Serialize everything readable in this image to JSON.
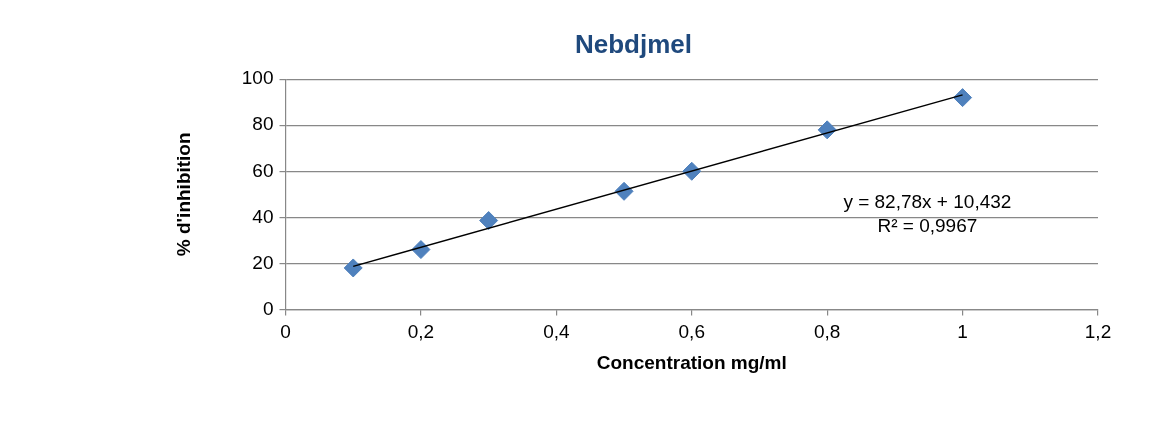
{
  "chart_data": {
    "type": "scatter",
    "title": "Nebdjmel",
    "xlabel": "Concentration mg/ml",
    "ylabel": "% d'inhibition",
    "x": [
      0.1,
      0.2,
      0.3,
      0.5,
      0.6,
      0.8,
      1
    ],
    "series": [
      {
        "color": "#4f81bd",
        "marker": "diamond",
        "values": [
          18,
          26,
          38.6,
          51.3,
          60,
          78,
          92
        ]
      },
      {
        "type": "line",
        "color": "#000000",
        "marker": "none",
        "x": [
          0.1,
          1
        ],
        "values": [
          18.7,
          93.2
        ]
      }
    ],
    "xlim": [
      0,
      1.2
    ],
    "xticks": [
      0,
      {
        "value": 0.2,
        "label": "0,2"
      },
      {
        "value": 0.4,
        "label": "0,4"
      },
      {
        "value": 0.6,
        "label": "0,6"
      },
      {
        "value": 0.8,
        "label": "0,8"
      },
      1,
      {
        "value": 1.2,
        "label": "1,2"
      }
    ],
    "ylim": [
      0,
      100
    ],
    "yticks": [
      0,
      20,
      40,
      60,
      80,
      100
    ],
    "grid": "y",
    "annotations": [
      "y = 82,78x + 10,432",
      "R² = 0,9967"
    ]
  }
}
